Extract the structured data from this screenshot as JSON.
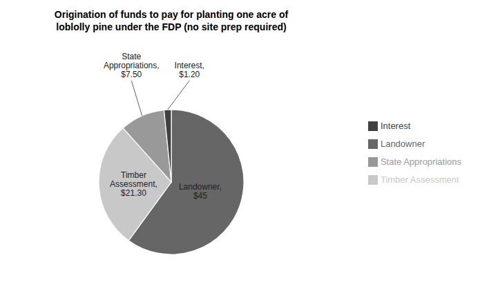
{
  "chart_data": {
    "type": "pie",
    "title": "Origination of funds to pay for planting one acre of\nloblolly pine under the FDP (no site prep required)",
    "categories": [
      "Landowner",
      "Timber Assessment",
      "State Appropriations",
      "Interest"
    ],
    "values": [
      45.0,
      21.3,
      7.5,
      1.2
    ],
    "value_labels": [
      "Landowner,\n$45",
      "Timber\nAssessment,\n$21.30",
      "State\nAppropriations,\n$7.50",
      "Interest,\n$1.20"
    ],
    "colors": [
      "#666666",
      "#c8c8c8",
      "#999999",
      "#404040"
    ],
    "data_labels": true,
    "legend": "right"
  }
}
